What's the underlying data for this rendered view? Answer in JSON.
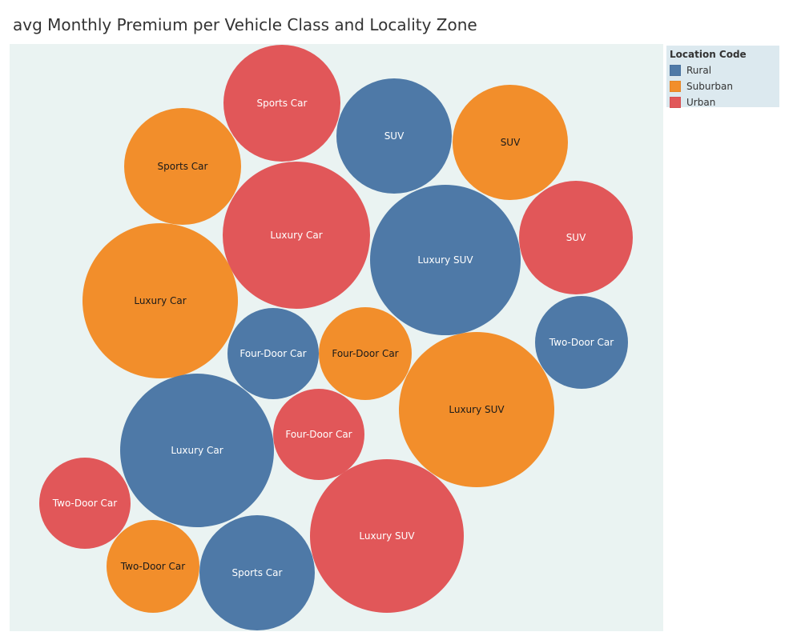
{
  "title": "avg Monthly Premium per Vehicle Class and Locality Zone",
  "colors": {
    "Rural": "#4e79a7",
    "Suburban": "#f28e2b",
    "Urban": "#e15759",
    "plot_bg": "#eaf3f2",
    "legend_bg": "#dce9ef"
  },
  "legend": {
    "title": "Location Code",
    "items": [
      "Rural",
      "Suburban",
      "Urban"
    ]
  },
  "chart_data": {
    "type": "bubble",
    "title": "avg Monthly Premium per Vehicle Class and Locality Zone",
    "size_measure": "avg Monthly Premium",
    "color_dimension": "Location Code",
    "label_dimension": "Vehicle Class",
    "bubbles": [
      {
        "label": "Sports Car",
        "zone": "Urban",
        "size": 73
      },
      {
        "label": "SUV",
        "zone": "Rural",
        "size": 72
      },
      {
        "label": "SUV",
        "zone": "Suburban",
        "size": 72
      },
      {
        "label": "Sports Car",
        "zone": "Suburban",
        "size": 73
      },
      {
        "label": "Luxury Car",
        "zone": "Urban",
        "size": 92
      },
      {
        "label": "Luxury SUV",
        "zone": "Rural",
        "size": 94
      },
      {
        "label": "SUV",
        "zone": "Urban",
        "size": 71
      },
      {
        "label": "Luxury Car",
        "zone": "Suburban",
        "size": 97
      },
      {
        "label": "Four-Door Car",
        "zone": "Rural",
        "size": 57
      },
      {
        "label": "Four-Door Car",
        "zone": "Suburban",
        "size": 58
      },
      {
        "label": "Two-Door Car",
        "zone": "Rural",
        "size": 58
      },
      {
        "label": "Luxury SUV",
        "zone": "Suburban",
        "size": 97
      },
      {
        "label": "Luxury Car",
        "zone": "Rural",
        "size": 96
      },
      {
        "label": "Four-Door Car",
        "zone": "Urban",
        "size": 57
      },
      {
        "label": "Two-Door Car",
        "zone": "Urban",
        "size": 57
      },
      {
        "label": "Luxury SUV",
        "zone": "Urban",
        "size": 96
      },
      {
        "label": "Two-Door Car",
        "zone": "Suburban",
        "size": 58
      },
      {
        "label": "Sports Car",
        "zone": "Rural",
        "size": 72
      }
    ]
  }
}
